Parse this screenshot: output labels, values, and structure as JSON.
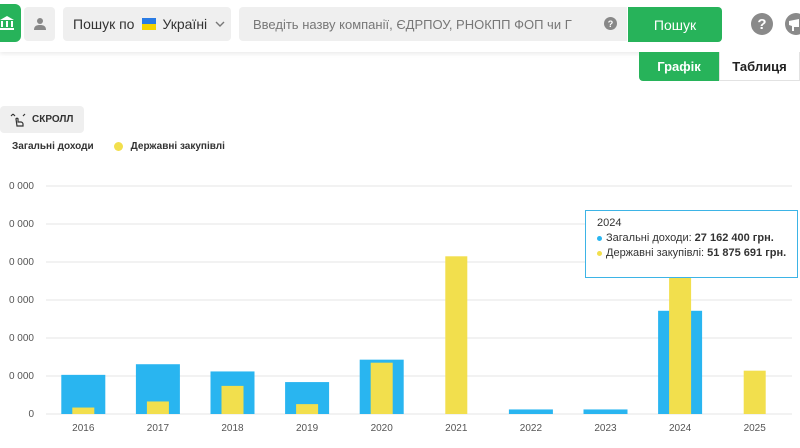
{
  "header": {
    "search_scope_label": "Пошук по",
    "country": "Україні",
    "search_placeholder": "Введіть назву компанії, ЄДРПОУ, РНОКПП ФОП чи Г",
    "search_button": "Пошук",
    "help_symbol": "?"
  },
  "view_tabs": {
    "graph": "Графік",
    "table": "Таблиця"
  },
  "scroll_button": "СКРОЛЛ",
  "colors": {
    "accent": "#27b35a",
    "income": "#29b5f0",
    "procurement": "#f2df4d",
    "tooltip_border": "#3db4e6"
  },
  "chart_data": {
    "type": "bar",
    "categories": [
      "2016",
      "2017",
      "2018",
      "2019",
      "2020",
      "2021",
      "2022",
      "2023",
      "2024",
      "2025"
    ],
    "series": [
      {
        "name": "Загальні доходи",
        "color": "#29b5f0",
        "values": [
          10300000,
          13100000,
          11200000,
          8400000,
          14300000,
          0,
          1200000,
          1200000,
          27162400,
          0
        ]
      },
      {
        "name": "Державні закупівлі",
        "color": "#f2df4d",
        "values": [
          1700000,
          3300000,
          7400000,
          2600000,
          13500000,
          41500000,
          0,
          0,
          51875691,
          11400000
        ]
      }
    ],
    "y_tick_labels": [
      "0",
      "0 000",
      "0 000",
      "0 000",
      "0 000",
      "0 000",
      "0 000"
    ],
    "ylim": [
      0,
      60000000
    ],
    "y_tick_step": 10000000,
    "grid": true,
    "legend_position": "top-left"
  },
  "tooltip": {
    "title": "2024",
    "income_label": "Загальні доходи:",
    "income_value": "27 162 400 грн.",
    "procurement_label": "Державні закупівлі:",
    "procurement_value": "51 875 691 грн."
  }
}
